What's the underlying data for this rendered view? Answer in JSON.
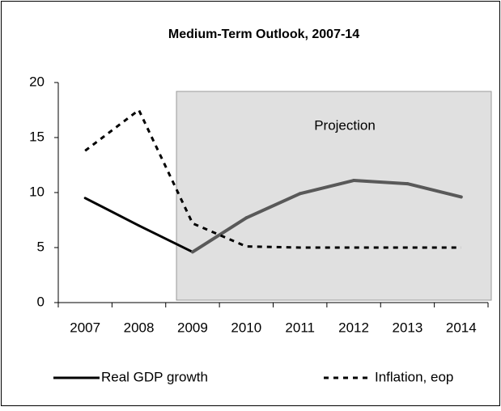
{
  "chart_data": {
    "type": "line",
    "title": "Medium-Term Outlook, 2007-14",
    "categories": [
      "2007",
      "2008",
      "2009",
      "2010",
      "2011",
      "2012",
      "2013",
      "2014"
    ],
    "series": [
      {
        "name": "Real GDP growth",
        "color": "#000000",
        "projection_color": "#595959",
        "style": "solid",
        "values": [
          9.5,
          7.0,
          4.6,
          7.7,
          9.9,
          11.1,
          10.8,
          9.6
        ]
      },
      {
        "name": "Inflation, eop",
        "color": "#000000",
        "style": "dashed",
        "values": [
          13.8,
          17.5,
          7.2,
          5.1,
          5.0,
          5.0,
          5.0,
          5.0
        ]
      }
    ],
    "projection": {
      "label": "Projection",
      "start": "2009"
    },
    "ylim": [
      0,
      20
    ],
    "yticks": [
      0,
      5,
      10,
      15,
      20
    ],
    "grid": false
  }
}
